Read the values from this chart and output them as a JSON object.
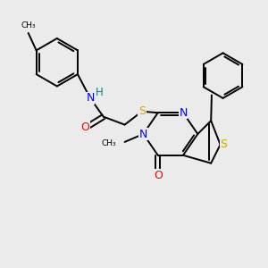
{
  "bg_color": "#ebebeb",
  "bond_color": "#000000",
  "bond_width": 1.4,
  "atom_colors": {
    "C": "#000000",
    "N": "#0000ff",
    "O": "#ff0000",
    "S": "#ccaa00",
    "H": "#008080"
  },
  "font_size": 8.5,
  "figsize": [
    3.0,
    3.0
  ],
  "dpi": 100
}
